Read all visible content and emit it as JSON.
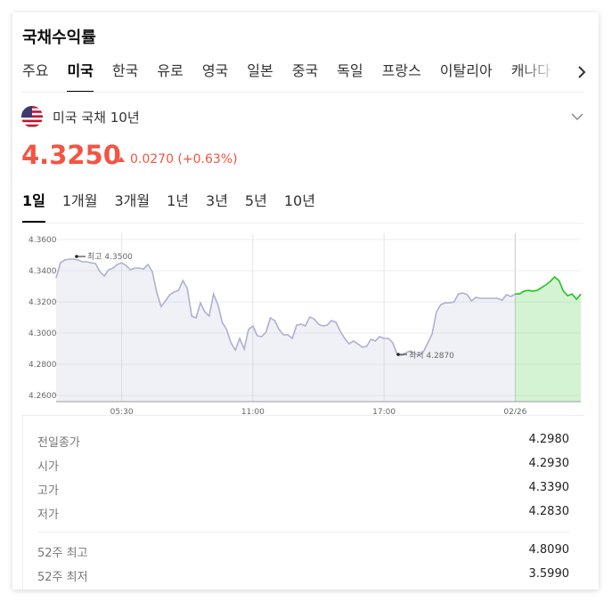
{
  "header": {
    "title": "국채수익률"
  },
  "tabs": {
    "items": [
      "주요",
      "미국",
      "한국",
      "유로",
      "영국",
      "일본",
      "중국",
      "독일",
      "프랑스",
      "이탈리아",
      "캐나다"
    ],
    "selected": 1
  },
  "instrument": {
    "name": "미국 국채 10년"
  },
  "quote": {
    "price": "4.3250",
    "change": "0.0270 (+0.63%)"
  },
  "periods": {
    "items": [
      "1일",
      "1개월",
      "3개월",
      "1년",
      "3년",
      "5년",
      "10년"
    ],
    "selected": 0
  },
  "chart_data": {
    "type": "line",
    "categories": [
      null,
      null,
      null,
      null,
      null,
      null,
      null,
      null,
      null,
      null,
      null,
      null,
      null,
      null,
      null,
      "05:30",
      null,
      null,
      null,
      null,
      null,
      null,
      null,
      null,
      null,
      null,
      null,
      null,
      null,
      null,
      null,
      null,
      null,
      null,
      null,
      null,
      null,
      null,
      null,
      null,
      null,
      null,
      null,
      null,
      null,
      "11:00",
      null,
      null,
      null,
      null,
      null,
      null,
      null,
      null,
      null,
      null,
      null,
      null,
      null,
      null,
      null,
      null,
      null,
      null,
      null,
      null,
      null,
      null,
      null,
      null,
      null,
      null,
      null,
      null,
      null,
      "17:00",
      null,
      null,
      null,
      null,
      null,
      null,
      null,
      null,
      null,
      null,
      null,
      null,
      null,
      null,
      null,
      null,
      null,
      null,
      null,
      null,
      null,
      null,
      null,
      null,
      null,
      null,
      null,
      null,
      null,
      "02/26",
      null,
      null,
      null,
      null,
      null,
      null,
      null,
      null,
      null,
      null,
      null,
      null,
      null,
      null,
      null
    ],
    "series": [
      {
        "color": "#aeb0d2",
        "values": [
          4.3354,
          4.3451,
          4.3469,
          4.3474,
          4.3474,
          4.3469,
          4.3457,
          4.3457,
          4.3451,
          4.3446,
          4.3394,
          4.3366,
          4.3406,
          4.3417,
          4.344,
          4.3451,
          4.3434,
          4.3406,
          4.3417,
          4.3417,
          4.3411,
          4.344,
          4.3394,
          4.3263,
          4.3171,
          4.3206,
          4.3246,
          4.3263,
          4.3274,
          4.3337,
          4.3286,
          4.3109,
          4.3097,
          4.3194,
          4.3137,
          4.3109,
          4.3251,
          4.3183,
          4.3069,
          4.3023,
          4.2937,
          4.2891,
          4.2966,
          4.2897,
          4.3023,
          4.3046,
          4.2983,
          4.2977,
          4.3006,
          4.3097,
          4.308,
          4.3023,
          4.2989,
          4.2989,
          4.2966,
          4.3051,
          4.3057,
          4.3046,
          4.3103,
          4.3091,
          4.3057,
          4.3046,
          4.3051,
          4.308,
          4.3069,
          4.3011,
          4.2966,
          4.2931,
          4.2949,
          4.2931,
          4.2909,
          4.2914,
          4.296,
          4.2949,
          4.2977,
          4.2966,
          4.2966,
          4.2937,
          4.2863,
          4.2857,
          4.2874,
          4.2886,
          4.2869,
          4.2857,
          4.288,
          4.2937,
          4.2994,
          4.3137,
          4.3183,
          4.3194,
          4.3194,
          4.32,
          4.3251,
          4.3257,
          4.3246,
          4.3206,
          4.3229,
          4.3223,
          4.3223,
          4.3223,
          4.3223,
          4.3223,
          4.3211,
          4.3246,
          4.3234,
          4.3251,
          null,
          null,
          null,
          null,
          null,
          null,
          null,
          null,
          null,
          null,
          null,
          null,
          null,
          null,
          null
        ]
      },
      {
        "color": "#22c322",
        "values": [
          null,
          null,
          null,
          null,
          null,
          null,
          null,
          null,
          null,
          null,
          null,
          null,
          null,
          null,
          null,
          null,
          null,
          null,
          null,
          null,
          null,
          null,
          null,
          null,
          null,
          null,
          null,
          null,
          null,
          null,
          null,
          null,
          null,
          null,
          null,
          null,
          null,
          null,
          null,
          null,
          null,
          null,
          null,
          null,
          null,
          null,
          null,
          null,
          null,
          null,
          null,
          null,
          null,
          null,
          null,
          null,
          null,
          null,
          null,
          null,
          null,
          null,
          null,
          null,
          null,
          null,
          null,
          null,
          null,
          null,
          null,
          null,
          null,
          null,
          null,
          null,
          null,
          null,
          null,
          null,
          null,
          null,
          null,
          null,
          null,
          null,
          null,
          null,
          null,
          null,
          null,
          null,
          null,
          null,
          null,
          null,
          null,
          null,
          null,
          null,
          null,
          null,
          null,
          null,
          null,
          4.3251,
          4.3251,
          4.3269,
          4.3274,
          4.3269,
          4.3274,
          4.3291,
          4.3309,
          4.3331,
          4.336,
          4.3337,
          4.3269,
          4.324,
          4.3251,
          4.3217,
          4.325
        ]
      }
    ],
    "ylim": [
      4.256,
      4.364
    ],
    "yticks": [
      {
        "value": 4.36,
        "label": "4.3600"
      },
      {
        "value": 4.34,
        "label": "4.3400"
      },
      {
        "value": 4.32,
        "label": "4.3200"
      },
      {
        "value": 4.3,
        "label": "4.3000"
      },
      {
        "value": 4.28,
        "label": "4.2800"
      },
      {
        "value": 4.26,
        "label": "4.2600"
      }
    ],
    "grid": true,
    "annotations": [
      {
        "text": "최고 4.3500"
      },
      {
        "text": "최저 4.2870"
      }
    ]
  },
  "stats": {
    "rows": [
      [
        "전일종가",
        "4.2980"
      ],
      [
        "시가",
        "4.2930"
      ],
      [
        "고가",
        "4.3390"
      ],
      [
        "저가",
        "4.2830"
      ]
    ],
    "week52": [
      [
        "52주 최고",
        "4.8090"
      ],
      [
        "52주 최저",
        "3.5990"
      ]
    ]
  }
}
